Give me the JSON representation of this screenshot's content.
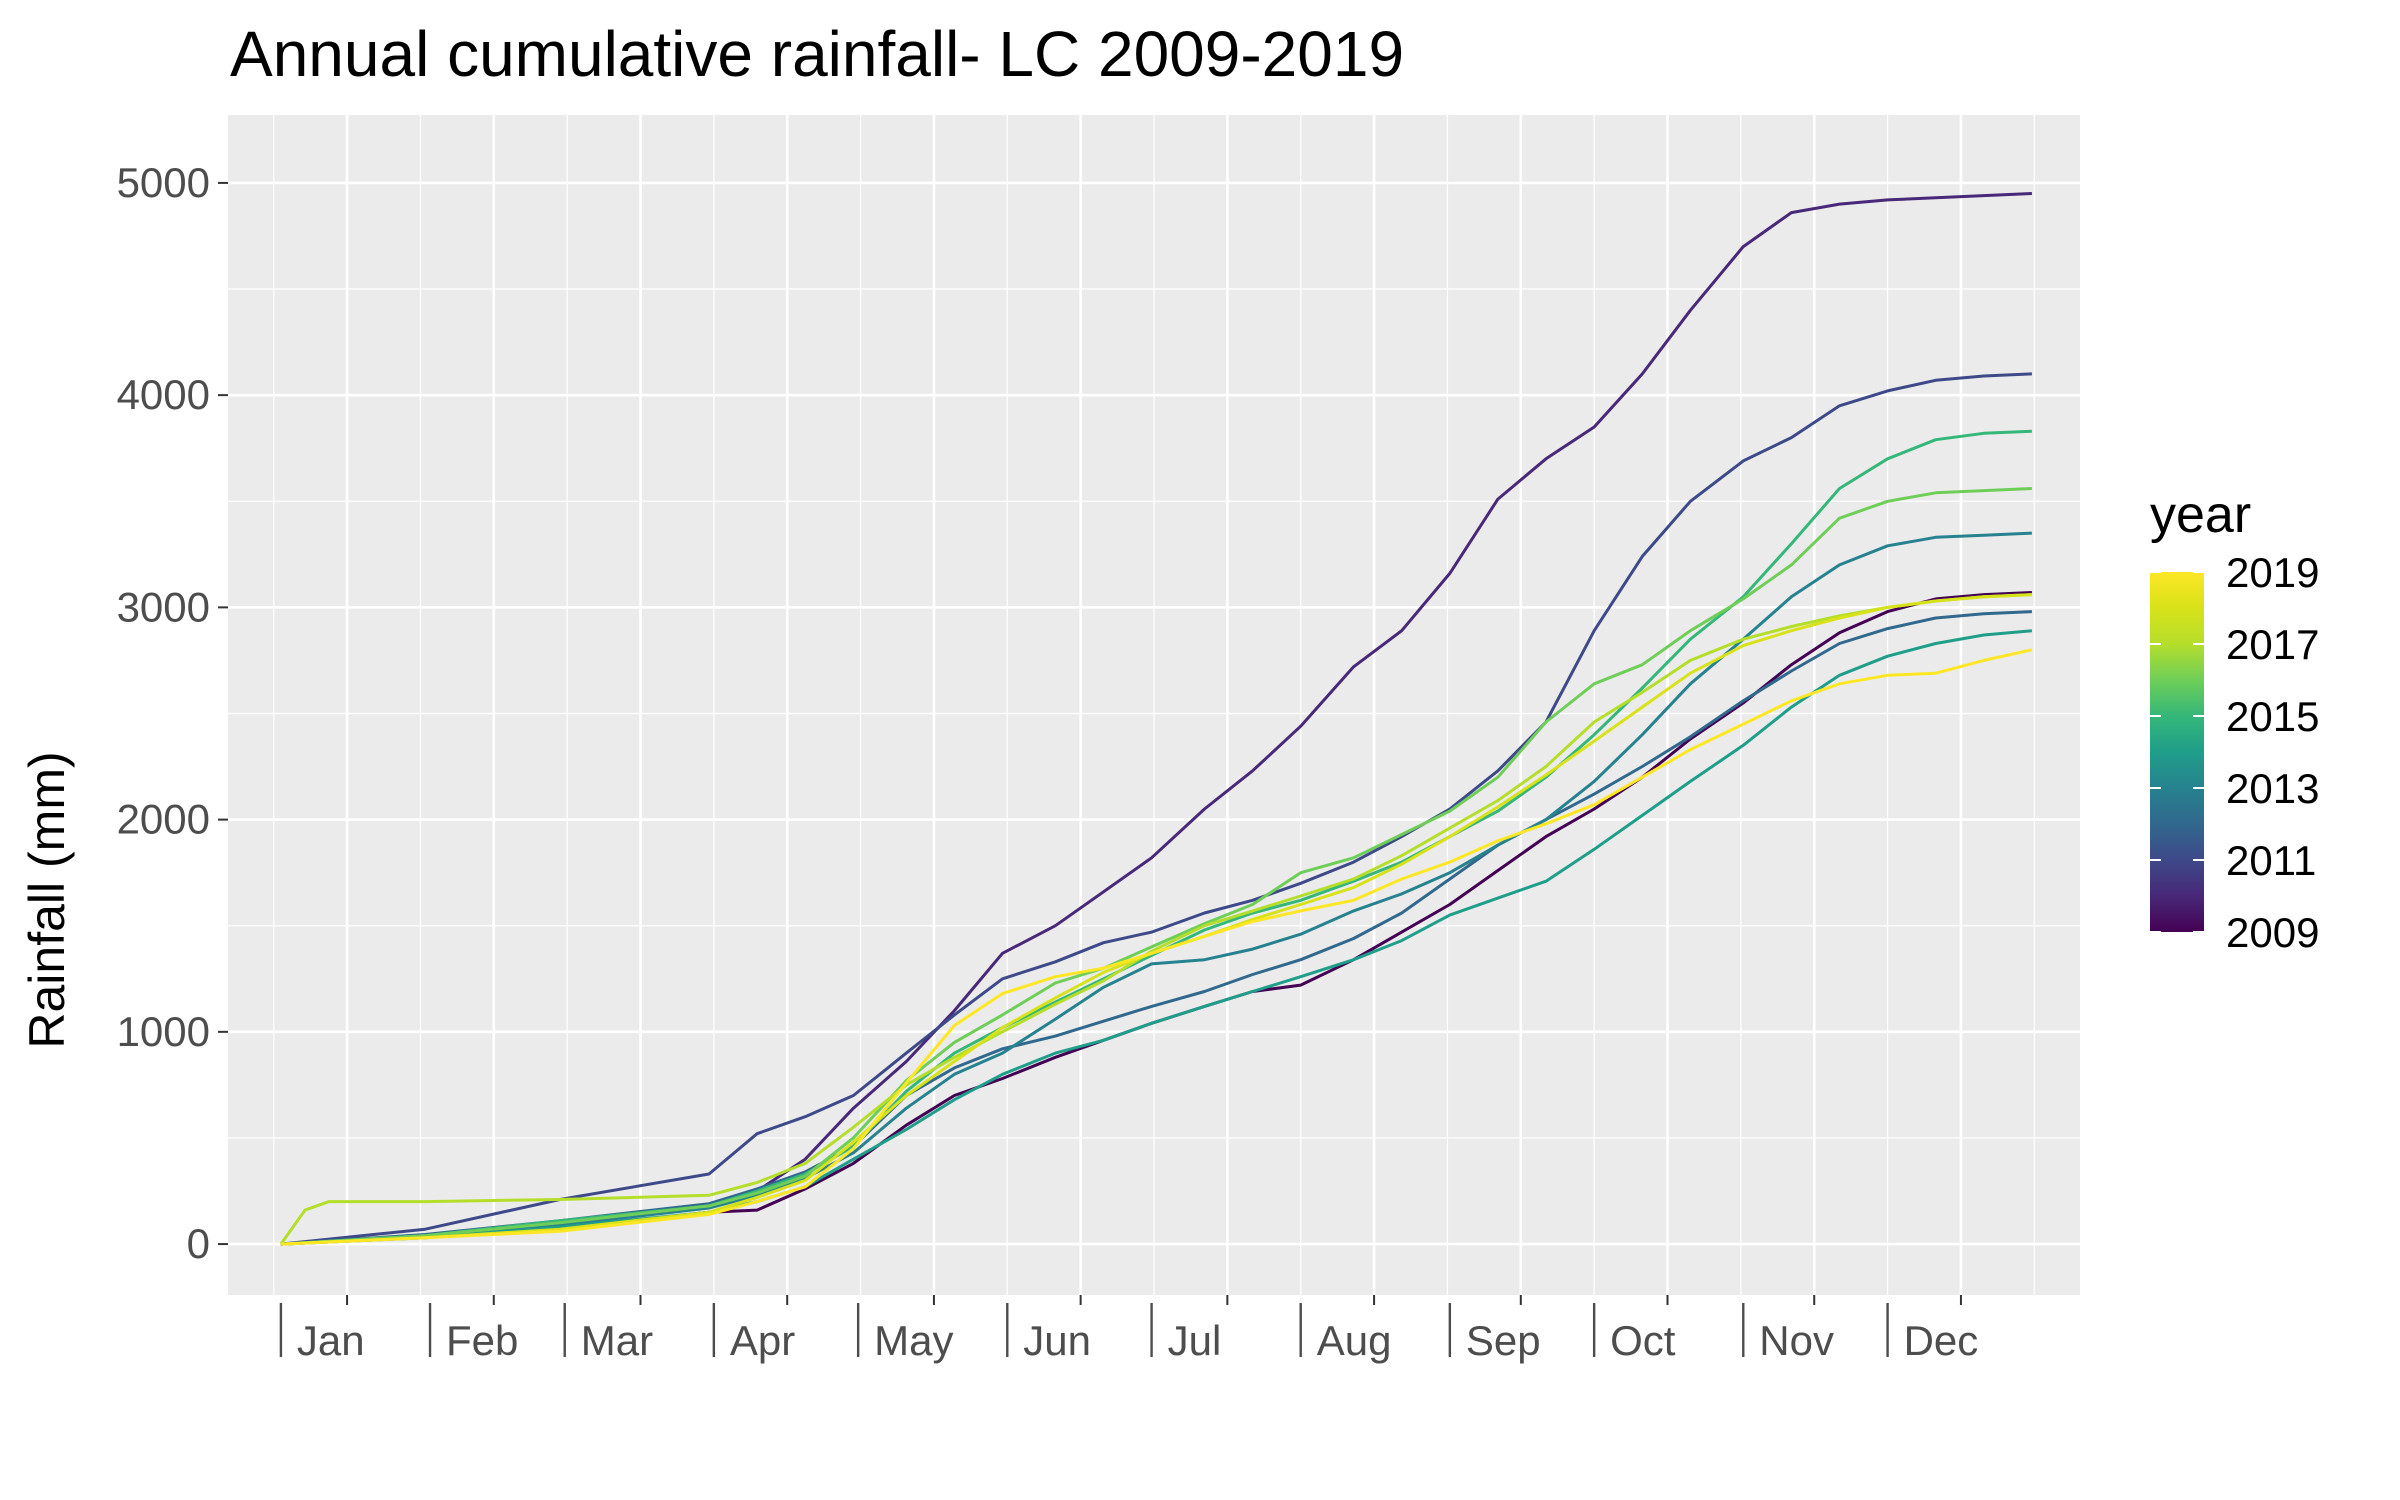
{
  "chart_data": {
    "type": "line",
    "title": "Annual cumulative rainfall- LC 2009-2019",
    "xlabel": "",
    "ylabel": "Rainfall (mm)",
    "x_unit": "day of year",
    "xlim": [
      -10,
      375
    ],
    "ylim": [
      -240,
      5320
    ],
    "grid": true,
    "background": "#ebebeb",
    "y_ticks": [
      0,
      1000,
      2000,
      3000,
      4000,
      5000
    ],
    "y_tick_labels": [
      "0",
      "1000",
      "2000",
      "3000",
      "4000",
      "5000"
    ],
    "x_ticks": [
      1,
      32,
      60,
      91,
      121,
      152,
      182,
      213,
      244,
      274,
      305,
      335
    ],
    "x_tick_labels": [
      "Jan",
      "Feb",
      "Mar",
      "Apr",
      "May",
      "Jun",
      "Jul",
      "Aug",
      "Sep",
      "Oct",
      "Nov",
      "Dec"
    ],
    "legend": {
      "title": "year",
      "position": "right",
      "type": "colorbar",
      "labels": [
        "2019",
        "2017",
        "2015",
        "2013",
        "2011",
        "2009"
      ],
      "values": [
        2019,
        2017,
        2015,
        2013,
        2011,
        2009
      ],
      "range": [
        2009,
        2019
      ],
      "colors": [
        "#440154",
        "#482878",
        "#3e4989",
        "#31688e",
        "#26828e",
        "#1f9e89",
        "#35b779",
        "#6ece58",
        "#b5de2b",
        "#d8e219",
        "#fde725"
      ]
    },
    "series": [
      {
        "year": 2009,
        "color": "#440154",
        "x": [
          1,
          31,
          59,
          90,
          100,
          110,
          120,
          131,
          141,
          151,
          162,
          172,
          182,
          193,
          203,
          213,
          224,
          234,
          244,
          254,
          264,
          274,
          284,
          294,
          305,
          315,
          325,
          335,
          345,
          355,
          365
        ],
        "y": [
          0,
          40,
          70,
          150,
          160,
          260,
          380,
          560,
          700,
          780,
          880,
          960,
          1040,
          1120,
          1190,
          1220,
          1340,
          1470,
          1600,
          1760,
          1920,
          2050,
          2200,
          2380,
          2550,
          2730,
          2880,
          2980,
          3040,
          3060,
          3070
        ]
      },
      {
        "year": 2010,
        "color": "#482878",
        "x": [
          1,
          31,
          59,
          90,
          100,
          110,
          120,
          131,
          141,
          151,
          162,
          172,
          182,
          193,
          203,
          213,
          224,
          234,
          244,
          254,
          264,
          274,
          284,
          294,
          305,
          315,
          325,
          335,
          345,
          355,
          365
        ],
        "y": [
          0,
          40,
          90,
          180,
          250,
          400,
          640,
          860,
          1100,
          1370,
          1500,
          1660,
          1820,
          2050,
          2230,
          2440,
          2720,
          2890,
          3160,
          3510,
          3700,
          3850,
          4100,
          4400,
          4700,
          4860,
          4900,
          4920,
          4930,
          4940,
          4950
        ]
      },
      {
        "year": 2011,
        "color": "#3e4989",
        "x": [
          1,
          31,
          59,
          90,
          100,
          110,
          120,
          131,
          141,
          151,
          162,
          172,
          182,
          193,
          203,
          213,
          224,
          234,
          244,
          254,
          264,
          274,
          284,
          294,
          305,
          315,
          325,
          335,
          345,
          355,
          365
        ],
        "y": [
          0,
          70,
          210,
          330,
          520,
          600,
          700,
          900,
          1080,
          1250,
          1330,
          1420,
          1470,
          1560,
          1620,
          1700,
          1800,
          1920,
          2050,
          2230,
          2460,
          2890,
          3240,
          3500,
          3690,
          3800,
          3950,
          4020,
          4070,
          4090,
          4100
        ]
      },
      {
        "year": 2012,
        "color": "#31688e",
        "x": [
          1,
          31,
          59,
          90,
          100,
          110,
          120,
          131,
          141,
          151,
          162,
          172,
          182,
          193,
          203,
          213,
          224,
          234,
          244,
          254,
          264,
          274,
          284,
          294,
          305,
          315,
          325,
          335,
          345,
          355,
          365
        ],
        "y": [
          0,
          45,
          110,
          190,
          260,
          340,
          460,
          700,
          830,
          920,
          980,
          1050,
          1120,
          1190,
          1270,
          1340,
          1440,
          1560,
          1720,
          1880,
          2000,
          2120,
          2250,
          2390,
          2560,
          2700,
          2830,
          2900,
          2950,
          2970,
          2980
        ]
      },
      {
        "year": 2013,
        "color": "#26828e",
        "x": [
          1,
          31,
          59,
          90,
          100,
          110,
          120,
          131,
          141,
          151,
          162,
          172,
          182,
          193,
          203,
          213,
          224,
          234,
          244,
          254,
          264,
          274,
          284,
          294,
          305,
          315,
          325,
          335,
          345,
          355,
          365
        ],
        "y": [
          0,
          30,
          90,
          170,
          230,
          310,
          430,
          640,
          800,
          900,
          1060,
          1210,
          1320,
          1340,
          1390,
          1460,
          1570,
          1650,
          1750,
          1880,
          2000,
          2180,
          2400,
          2640,
          2850,
          3050,
          3200,
          3290,
          3330,
          3340,
          3350
        ]
      },
      {
        "year": 2014,
        "color": "#1f9e89",
        "x": [
          1,
          31,
          59,
          90,
          100,
          110,
          120,
          131,
          141,
          151,
          162,
          172,
          182,
          193,
          203,
          213,
          224,
          234,
          244,
          254,
          264,
          274,
          284,
          294,
          305,
          315,
          325,
          335,
          345,
          355,
          365
        ],
        "y": [
          0,
          30,
          80,
          150,
          200,
          270,
          400,
          540,
          680,
          800,
          900,
          960,
          1040,
          1120,
          1190,
          1260,
          1340,
          1430,
          1550,
          1630,
          1710,
          1860,
          2020,
          2180,
          2350,
          2530,
          2680,
          2770,
          2830,
          2870,
          2890
        ]
      },
      {
        "year": 2015,
        "color": "#35b779",
        "x": [
          1,
          31,
          59,
          90,
          100,
          110,
          120,
          131,
          141,
          151,
          162,
          172,
          182,
          193,
          203,
          213,
          224,
          234,
          244,
          254,
          264,
          274,
          284,
          294,
          305,
          315,
          325,
          335,
          345,
          355,
          365
        ],
        "y": [
          0,
          40,
          110,
          180,
          250,
          330,
          460,
          720,
          900,
          1020,
          1140,
          1250,
          1360,
          1480,
          1560,
          1620,
          1710,
          1800,
          1920,
          2040,
          2200,
          2400,
          2620,
          2850,
          3050,
          3300,
          3560,
          3700,
          3790,
          3820,
          3830
        ]
      },
      {
        "year": 2016,
        "color": "#6ece58",
        "x": [
          1,
          31,
          59,
          90,
          100,
          110,
          120,
          131,
          141,
          151,
          162,
          172,
          182,
          193,
          203,
          213,
          224,
          234,
          244,
          254,
          264,
          274,
          284,
          294,
          305,
          315,
          325,
          335,
          345,
          355,
          365
        ],
        "y": [
          0,
          40,
          100,
          180,
          240,
          320,
          500,
          770,
          950,
          1080,
          1230,
          1300,
          1400,
          1510,
          1600,
          1750,
          1820,
          1930,
          2040,
          2200,
          2460,
          2640,
          2730,
          2890,
          3040,
          3200,
          3420,
          3500,
          3540,
          3550,
          3560
        ]
      },
      {
        "year": 2017,
        "color": "#b5de2b",
        "x": [
          1,
          6,
          11,
          31,
          59,
          90,
          100,
          110,
          120,
          131,
          141,
          151,
          162,
          172,
          182,
          193,
          203,
          213,
          224,
          234,
          244,
          254,
          264,
          274,
          284,
          294,
          305,
          315,
          325,
          335,
          345,
          355,
          365
        ],
        "y": [
          0,
          160,
          200,
          200,
          210,
          230,
          290,
          380,
          550,
          750,
          880,
          1000,
          1130,
          1240,
          1380,
          1500,
          1570,
          1640,
          1720,
          1830,
          1960,
          2090,
          2250,
          2460,
          2600,
          2750,
          2850,
          2910,
          2960,
          3000,
          3030,
          3050,
          3060
        ]
      },
      {
        "year": 2018,
        "color": "#d8e219",
        "x": [
          1,
          31,
          59,
          90,
          100,
          110,
          120,
          131,
          141,
          151,
          162,
          172,
          182,
          193,
          203,
          213,
          224,
          234,
          244,
          254,
          264,
          274,
          284,
          294,
          305,
          315,
          325,
          335,
          345,
          355,
          365
        ],
        "y": [
          0,
          30,
          70,
          150,
          220,
          300,
          480,
          700,
          860,
          1020,
          1160,
          1280,
          1370,
          1450,
          1530,
          1600,
          1680,
          1790,
          1920,
          2060,
          2210,
          2370,
          2530,
          2690,
          2820,
          2890,
          2950,
          3000,
          3030,
          3050,
          3060
        ]
      },
      {
        "year": 2019,
        "color": "#fde725",
        "x": [
          1,
          31,
          59,
          90,
          100,
          110,
          120,
          131,
          141,
          151,
          162,
          172,
          182,
          193,
          203,
          213,
          224,
          234,
          244,
          254,
          264,
          274,
          284,
          294,
          305,
          315,
          325,
          335,
          345,
          355,
          365
        ],
        "y": [
          0,
          30,
          60,
          140,
          200,
          270,
          450,
          760,
          1030,
          1180,
          1260,
          1300,
          1370,
          1450,
          1520,
          1570,
          1620,
          1720,
          1800,
          1900,
          1980,
          2070,
          2200,
          2330,
          2450,
          2560,
          2640,
          2680,
          2690,
          2750,
          2800
        ]
      }
    ]
  }
}
